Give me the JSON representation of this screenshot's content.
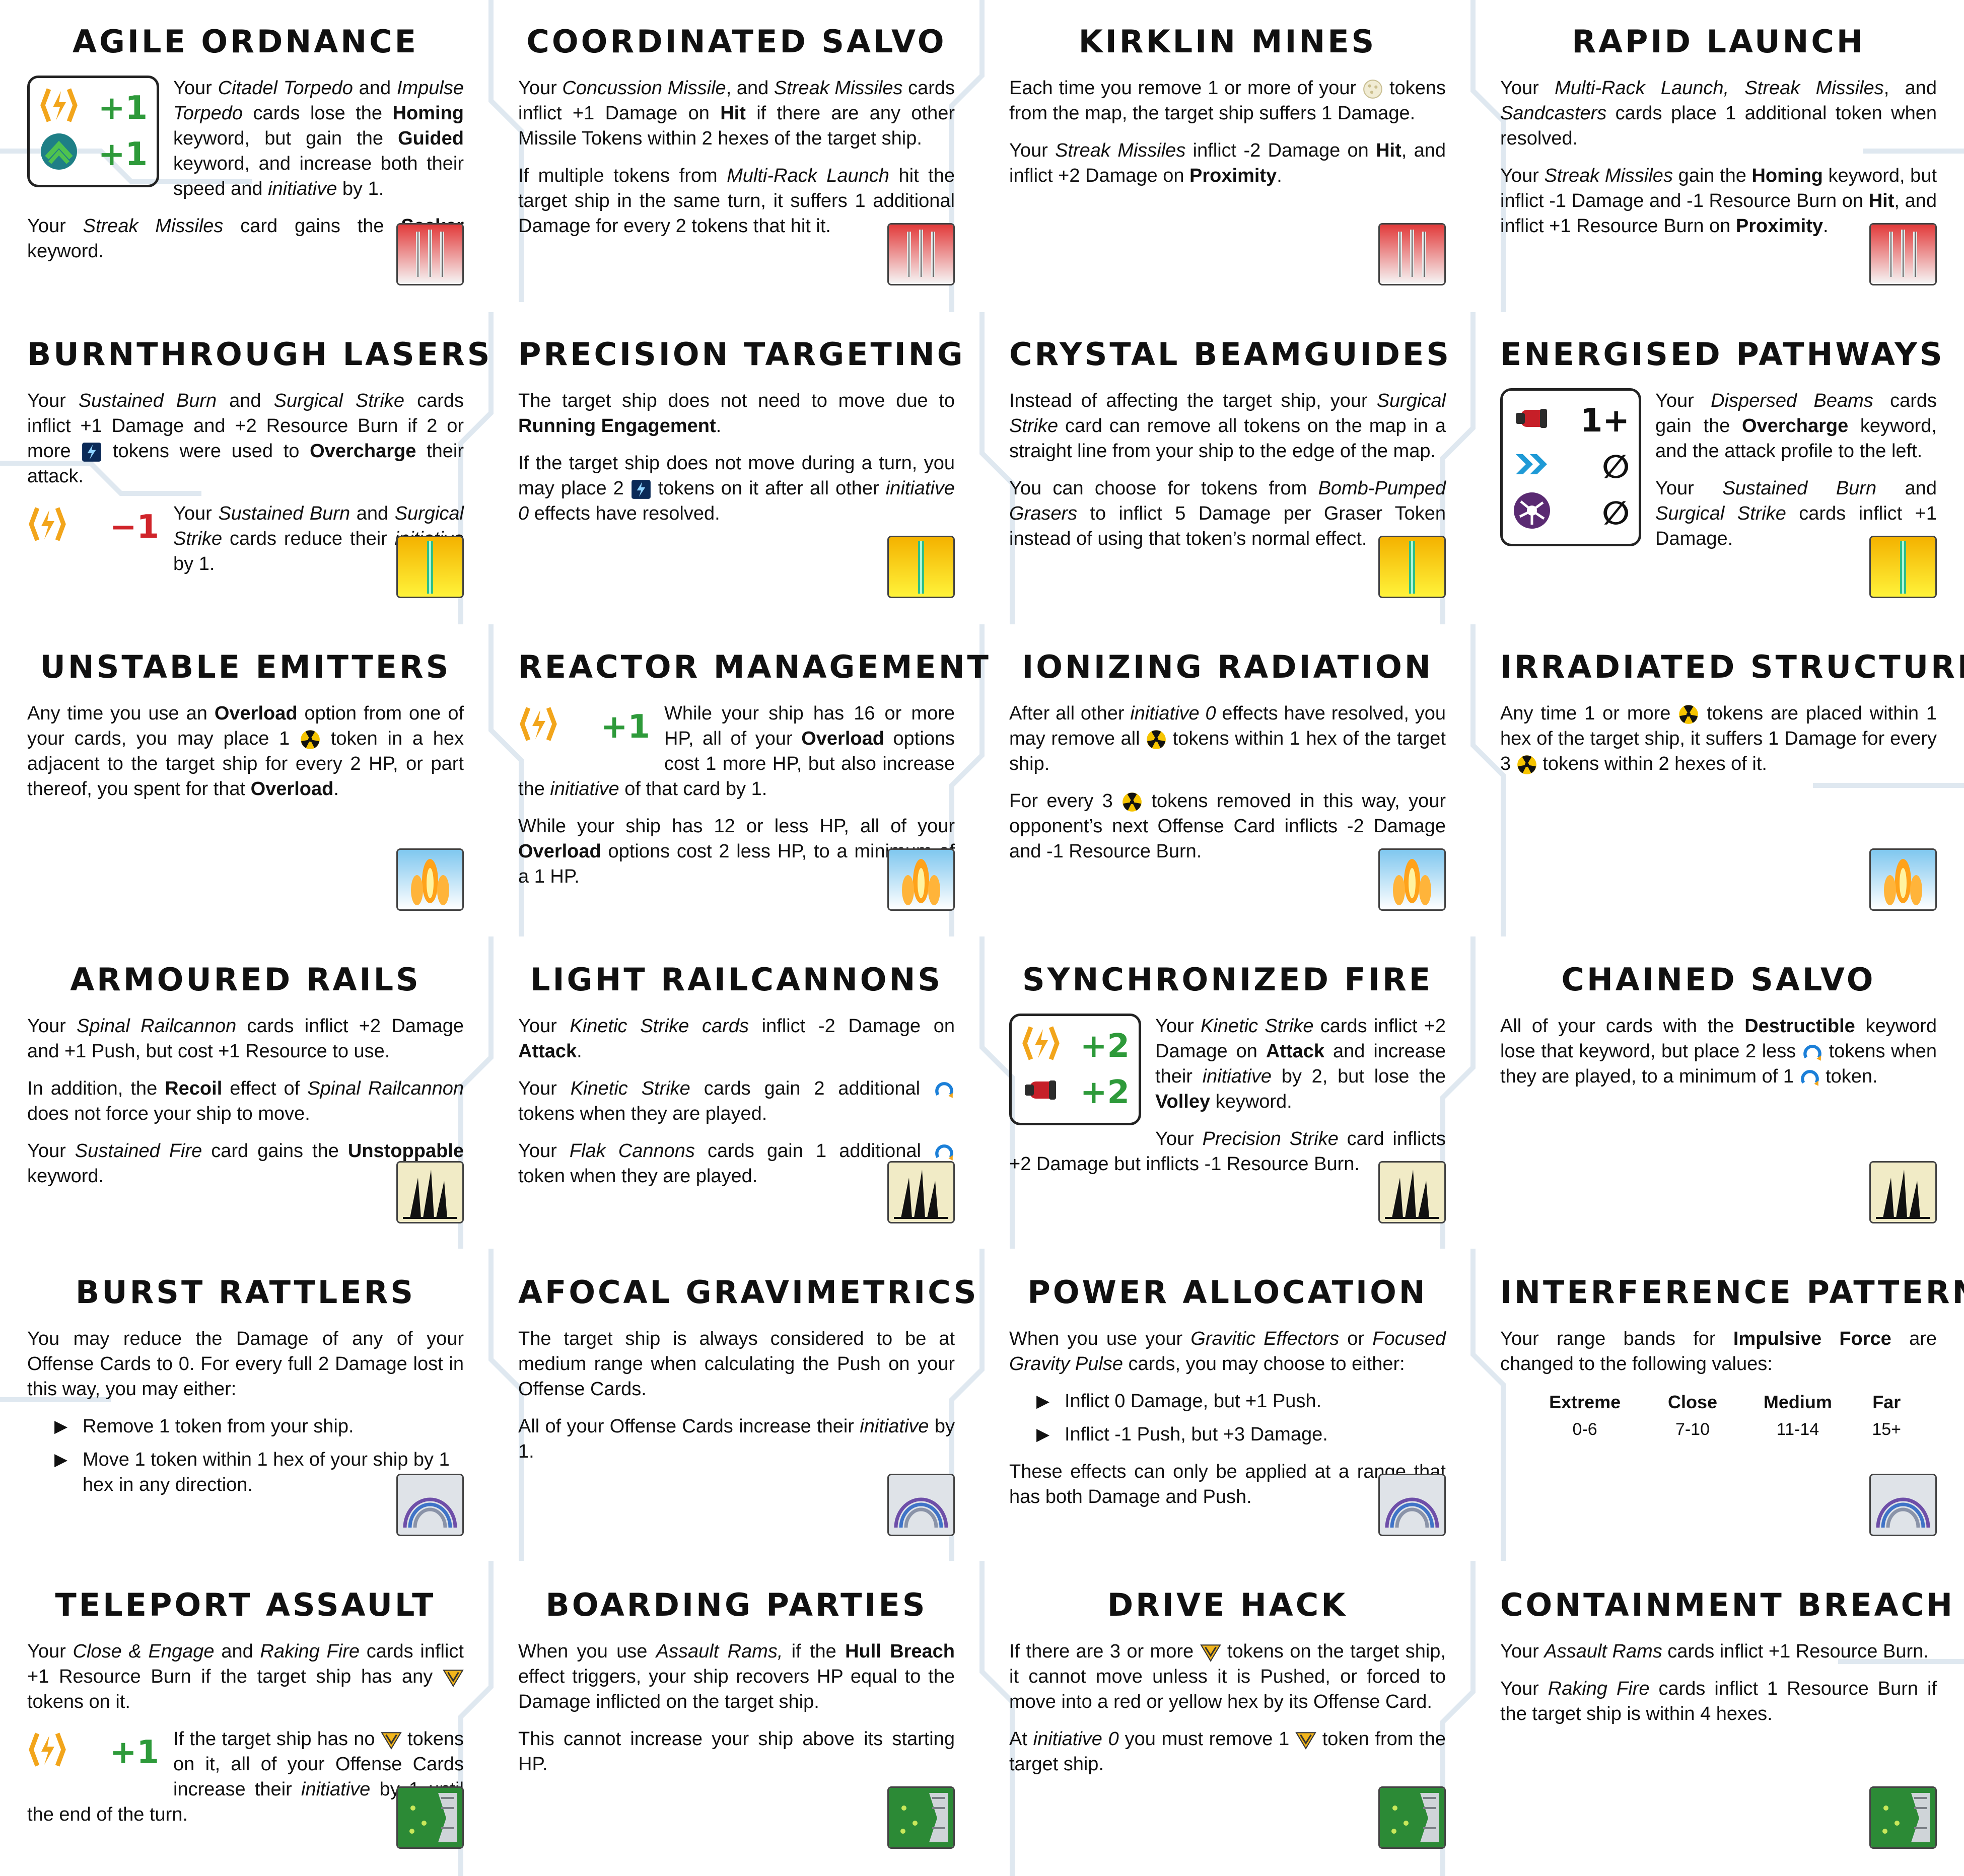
{
  "cards": [
    {
      "title": "Agile Ordnance",
      "emblem": "missile-red",
      "figure": {
        "rows": [
          {
            "icon": "initiative-icon",
            "value": "+1"
          },
          {
            "icon": "speed-chevron-icon",
            "value": "+1"
          }
        ]
      },
      "paragraphs": [
        "Your <i>Citadel Torpedo</i> and <i>Impulse Torpedo</i> cards lose the <b>Homing</b> keyword, but gain the <b>Guided</b> keyword, and increase both their speed and <i>initiative</i> by 1.",
        "Your <i>Streak Missiles</i> card gains the <b>Seeker</b> keyword."
      ]
    },
    {
      "title": "Coordinated Salvo",
      "emblem": "missile-red",
      "paragraphs": [
        "Your <i>Concussion Missile</i>, and <i>Streak Missiles</i> cards inflict +1 Damage on <b>Hit</b> if there are any other Missile Tokens within 2 hexes of the target ship.",
        "If multiple tokens from <i>Multi-Rack Launch</i> hit the target ship in the same turn, it suffers 1 additional Damage for every 2 tokens that hit it."
      ]
    },
    {
      "title": "Kirklin Mines",
      "emblem": "missile-red",
      "paragraphs": [
        "Each time you remove 1 or more of your {mine} tokens from the map, the target ship suffers 1 Damage.",
        "Your <i>Streak Missiles</i> inflict -2 Damage on <b>Hit</b>, and inflict +2 Damage on <b>Proximity</b>."
      ]
    },
    {
      "title": "Rapid Launch",
      "emblem": "missile-red",
      "paragraphs": [
        "Your <i>Multi-Rack Launch, Streak Missiles</i>, and <i>Sandcasters</i> cards place 1 additional token when resolved.",
        "Your <i>Streak Missiles</i> gain the <b>Homing</b> keyword, but inflict -1 Damage and -1 Resource Burn on <b>Hit</b>, and inflict +1 Resource Burn on <b>Proximity</b>."
      ]
    },
    {
      "title": "Burnthrough Lasers",
      "emblem": "laser-yellow",
      "paragraphs": [
        "Your <i>Sustained Burn</i> and <i>Surgical Strike</i> cards inflict +1 Damage and +2 Resource Burn if 2 or more {overcharge} tokens were used to <b>Overcharge</b> their attack."
      ],
      "figure_after": {
        "plain": true,
        "rows": [
          {
            "icon": "initiative-icon",
            "value": "−1",
            "neg": true
          }
        ]
      },
      "paragraphs_after": [
        "Your <i>Sustained Burn</i> and <i>Surgical Strike</i> cards reduce their <i>initiative</i> by 1."
      ]
    },
    {
      "title": "Precision Targeting",
      "emblem": "laser-yellow",
      "paragraphs": [
        "The target ship does not need to move due to <b>Running Engagement</b>.",
        "If the target ship does not move during a turn, you may place 2 {overcharge} tokens on it after all other <i>initiative 0</i> effects have resolved."
      ]
    },
    {
      "title": "Crystal Beamguides",
      "emblem": "laser-yellow",
      "paragraphs": [
        "Instead of affecting the target ship, your <i>Surgical Strike</i> card can remove all tokens on the map in a straight line from your ship to the edge of the map.",
        "You can choose for tokens from <i>Bomb-Pumped Grasers</i> to inflict 5 Damage per Graser Token instead of using that token’s normal effect."
      ]
    },
    {
      "title": "Energised Pathways",
      "emblem": "laser-yellow",
      "figure": {
        "rows": [
          {
            "icon": "damage-icon",
            "value": "1+",
            "blk": true
          },
          {
            "icon": "push-icon",
            "value": "∅",
            "blk": true
          },
          {
            "icon": "resource-icon",
            "value": "∅",
            "blk": true
          }
        ]
      },
      "paragraphs": [
        "Your <i>Dispersed Beams</i> cards gain the <b>Overcharge</b> keyword, and the attack profile to the left.",
        "Your <i>Sustained Burn</i> and <i>Surgical Strike</i> cards inflict +1 Damage."
      ]
    },
    {
      "title": "Unstable Emitters",
      "emblem": "plasma-blue",
      "paragraphs": [
        "Any time you use an <b>Overload</b> option from one of your cards, you may place 1 {rad} token in a hex adjacent to the target ship for every 2 HP, or part thereof, you spent for that <b>Overload</b>."
      ]
    },
    {
      "title": "Reactor Management",
      "emblem": "plasma-blue",
      "figure": {
        "plain": true,
        "rows": [
          {
            "icon": "initiative-icon",
            "value": "+1"
          }
        ]
      },
      "paragraphs": [
        "While your ship has 16 or more HP, all of your <b>Overload</b> options cost 1 more HP, but also increase the <i>initiative</i> of that card by 1.",
        "While your ship has 12 or less HP, all of your <b>Overload</b> options cost 2 less HP, to a minimum of a 1 HP."
      ]
    },
    {
      "title": "Ionizing Radiation",
      "emblem": "plasma-blue",
      "paragraphs": [
        "After all other <i>initiative 0</i> effects have resolved, you may remove all {rad} tokens within 1 hex of the target ship.",
        "For every 3 {rad} tokens removed in this way, your opponent’s next Offense Card inflicts -2 Damage and -1 Resource Burn."
      ]
    },
    {
      "title": "Irradiated Structure",
      "emblem": "plasma-blue",
      "paragraphs": [
        "Any time 1 or more {rad} tokens are placed within 1 hex of the target ship, it suffers 1 Damage for every 3 {rad} tokens within 2 hexes of it."
      ]
    },
    {
      "title": "Armoured Rails",
      "emblem": "rail-beige",
      "paragraphs": [
        "Your <i>Spinal Railcannon</i> cards inflict +2 Damage and +1 Push, but cost +1 Resource to use.",
        "In addition, the <b>Recoil</b> effect of <i>Spinal Railcannon</i> does not force your ship to move.",
        "Your <i>Sustained Fire</i> card gains the <b>Unstoppable</b> keyword."
      ]
    },
    {
      "title": "Light Railcannons",
      "emblem": "rail-beige",
      "paragraphs": [
        "Your <i>Kinetic Strike cards</i> inflict -2 Damage on <b>Attack</b>.",
        "Your <i>Kinetic Strike</i> cards gain 2 additional {volley} tokens when they are played.",
        "Your <i>Flak Cannons</i> cards gain 1 additional {volley} token when they are played."
      ]
    },
    {
      "title": "Synchronized Fire",
      "emblem": "rail-beige",
      "figure": {
        "rows": [
          {
            "icon": "initiative-icon",
            "value": "+2"
          },
          {
            "icon": "damage-icon",
            "value": "+2"
          }
        ]
      },
      "paragraphs": [
        "Your <i>Kinetic Strike</i> cards inflict +2 Damage on <b>Attack</b> and increase their <i>initiative</i> by 2, but lose the <b>Volley</b> keyword.",
        "Your <i>Precision Strike</i> card inflicts +2 Damage but inflicts -1 Resource Burn."
      ]
    },
    {
      "title": "Chained Salvo",
      "emblem": "rail-beige",
      "paragraphs": [
        "All of your cards with the <b>Destructible</b> keyword lose that keyword, but place 2 less {volley} tokens when they are played, to a minimum of 1 {volley} token."
      ]
    },
    {
      "title": "Burst Rattlers",
      "emblem": "wave-grey",
      "paragraphs": [
        "You may reduce the Damage of any of your Offense Cards to 0. For every full 2 Damage lost in this way, you may either:"
      ],
      "options": [
        "Remove 1 token from your ship.",
        "Move 1 token within 1 hex of your ship by 1 hex in any direction."
      ]
    },
    {
      "title": "Afocal Gravimetrics",
      "emblem": "wave-grey",
      "paragraphs": [
        "The target ship is always considered to be at medium range when calculating the Push on your Offense Cards.",
        "All of your Offense Cards increase their <i>initiative</i> by 1."
      ]
    },
    {
      "title": "Power Allocation",
      "emblem": "wave-grey",
      "paragraphs": [
        "When you use your <i>Gravitic Effectors</i> or <i>Focused Gravity Pulse</i> cards, you may choose to either:"
      ],
      "options": [
        "Inflict 0 Damage, but +1 Push.",
        "Inflict -1 Push, but +3 Damage."
      ],
      "paragraphs_after": [
        "These effects can only be applied at a range that has both Damage and Push."
      ]
    },
    {
      "title": "Interference Pattern",
      "emblem": "wave-grey",
      "paragraphs": [
        "Your range bands for <b>Impulsive Force</b> are changed to the following values:"
      ],
      "range_table": {
        "headers": [
          "Extreme",
          "Close",
          "Medium",
          "Far"
        ],
        "values": [
          "0-6",
          "7-10",
          "11-14",
          "15+"
        ]
      }
    },
    {
      "title": "Teleport Assault",
      "emblem": "boarding-green",
      "paragraphs": [
        "Your <i>Close &amp; Engage</i> and <i>Raking Fire</i> cards inflict +1 Resource Burn if the target ship has any {marine} tokens on it."
      ],
      "figure_after": {
        "plain": true,
        "rows": [
          {
            "icon": "initiative-icon",
            "value": "+1"
          }
        ]
      },
      "paragraphs_after": [
        "If the target ship has no {marine} tokens on it, all of your Offense Cards increase their <i>initiative</i> by 1 until the end of the turn."
      ]
    },
    {
      "title": "Boarding Parties",
      "emblem": "boarding-green",
      "paragraphs": [
        "When you use <i>Assault Rams,</i> if the <b>Hull Breach</b> effect triggers, your ship recovers HP equal to the Damage inflicted on the target ship.",
        "This cannot increase your ship above its starting HP."
      ]
    },
    {
      "title": "Drive Hack",
      "emblem": "boarding-green",
      "paragraphs": [
        "If there are 3 or more {marine} tokens on the target ship, it cannot move unless it is Pushed, or forced to move into a red or yellow hex by its Offense Card.",
        "At <i>initiative 0</i> you must remove 1 {marine} token from the target ship."
      ]
    },
    {
      "title": "Containment Breach",
      "emblem": "boarding-green",
      "paragraphs": [
        "Your <i>Assault Rams</i> cards inflict +1 Resource Burn.",
        "Your <i>Raking Fire</i> cards inflict 1 Resource Burn if the target ship is within 4 hexes."
      ]
    }
  ],
  "colors": {
    "positive": "#2e9a3a",
    "negative": "#d0242a",
    "bg_lines": "#dde6ee"
  }
}
